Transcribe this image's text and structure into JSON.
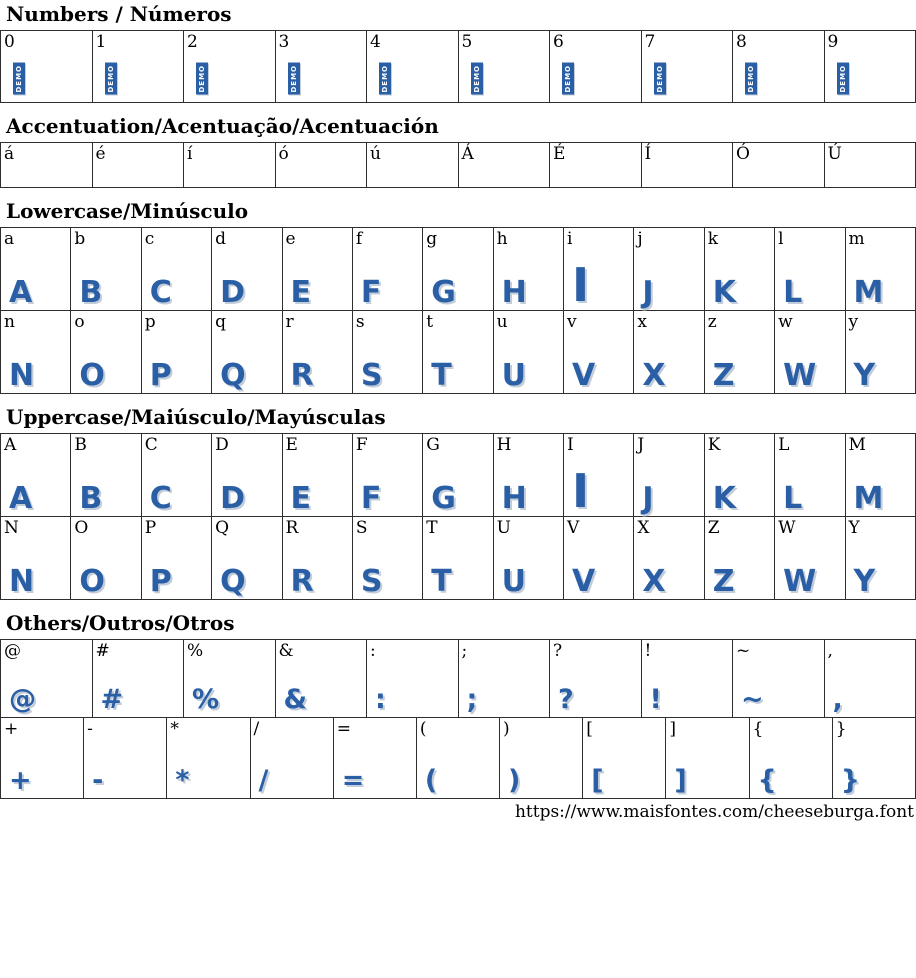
{
  "page": {
    "source_url": "https://www.maisfontes.com/cheeseburga.font",
    "font_name": "cheeseburga",
    "glyph_color": "#2a5fa6",
    "demo_stamp_text": "DEMO"
  },
  "sections": [
    {
      "id": "numbers",
      "title": "Numbers / Números",
      "cell_type": "demo",
      "rows": [
        [
          "0",
          "1",
          "2",
          "3",
          "4",
          "5",
          "6",
          "7",
          "8",
          "9"
        ]
      ]
    },
    {
      "id": "accentuation",
      "title": "Accentuation/Acentuação/Acentuación",
      "cell_type": "label-only",
      "rows": [
        [
          "á",
          "é",
          "í",
          "ó",
          "ú",
          "Á",
          "É",
          "Í",
          "Ó",
          "Ú"
        ]
      ]
    },
    {
      "id": "lowercase",
      "title": "Lowercase/Minúsculo",
      "cell_type": "glyph",
      "rows": [
        [
          "a",
          "b",
          "c",
          "d",
          "e",
          "f",
          "g",
          "h",
          "i",
          "j",
          "k",
          "l",
          "m"
        ],
        [
          "n",
          "o",
          "p",
          "q",
          "r",
          "s",
          "t",
          "u",
          "v",
          "x",
          "z",
          "w",
          "y"
        ]
      ]
    },
    {
      "id": "uppercase",
      "title": "Uppercase/Maiúsculo/Mayúsculas",
      "cell_type": "glyph",
      "rows": [
        [
          "A",
          "B",
          "C",
          "D",
          "E",
          "F",
          "G",
          "H",
          "I",
          "J",
          "K",
          "L",
          "M"
        ],
        [
          "N",
          "O",
          "P",
          "Q",
          "R",
          "S",
          "T",
          "U",
          "V",
          "X",
          "Z",
          "W",
          "Y"
        ]
      ]
    },
    {
      "id": "others",
      "title": "Others/Outros/Otros",
      "cell_type": "glyph",
      "rows": [
        [
          "@",
          "#",
          "%",
          "&",
          ":",
          ";",
          "?",
          "!",
          "~",
          ","
        ],
        [
          "+",
          "-",
          "*",
          "/",
          "=",
          "(",
          ")",
          "[",
          "]",
          "{",
          "}"
        ]
      ]
    }
  ]
}
